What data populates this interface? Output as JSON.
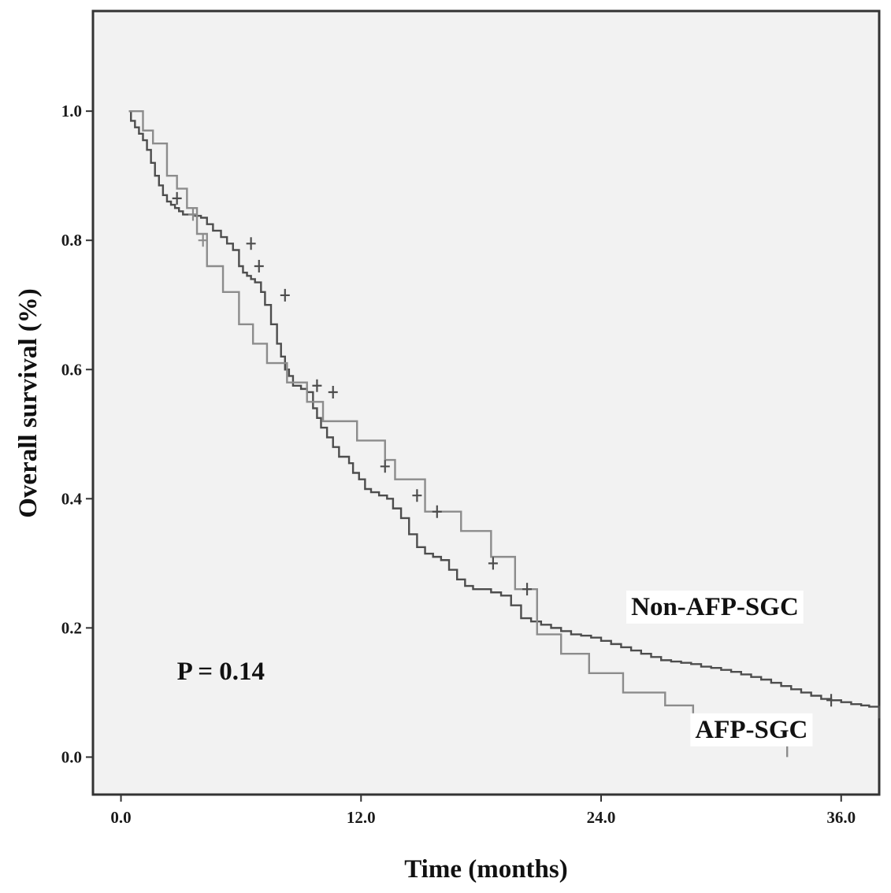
{
  "chart_data": {
    "type": "line",
    "xlabel": "Time (months)",
    "ylabel": "Overall survival (%)",
    "xlim": [
      -1.4,
      37.9
    ],
    "ylim": [
      -0.058,
      1.155
    ],
    "xticks": [
      0,
      12,
      24,
      36
    ],
    "xtick_labels": [
      "0.0",
      "12.0",
      "24.0",
      "36.0"
    ],
    "yticks": [
      0,
      0.2,
      0.4,
      0.6,
      0.8,
      1.0
    ],
    "ytick_labels": [
      "0.0",
      "0.2",
      "0.4",
      "0.6",
      "0.8",
      "1.0"
    ],
    "grid": false,
    "plot_background": "#f2f2f2",
    "annotations": [
      {
        "text": "P = 0.14",
        "x": 2.8,
        "y": 0.12
      },
      {
        "text": "Non-AFP-SGC",
        "x": 25.5,
        "y": 0.22
      },
      {
        "text": "AFP-SGC",
        "x": 28.7,
        "y": 0.03
      }
    ],
    "series": [
      {
        "name": "Non-AFP-SGC",
        "color": "#4d4d4d",
        "step": true,
        "x": [
          0.4,
          0.5,
          0.7,
          0.9,
          1.1,
          1.3,
          1.5,
          1.7,
          1.9,
          2.1,
          2.3,
          2.5,
          2.7,
          2.9,
          3.1,
          3.4,
          3.7,
          4.0,
          4.3,
          4.6,
          5.0,
          5.3,
          5.6,
          5.9,
          6.1,
          6.3,
          6.5,
          6.7,
          7.0,
          7.2,
          7.5,
          7.8,
          8.0,
          8.2,
          8.4,
          8.6,
          8.8,
          9.0,
          9.3,
          9.6,
          9.8,
          10.0,
          10.3,
          10.6,
          10.9,
          11.2,
          11.4,
          11.6,
          11.9,
          12.2,
          12.5,
          12.9,
          13.3,
          13.6,
          14.0,
          14.4,
          14.8,
          15.2,
          15.6,
          16.0,
          16.4,
          16.8,
          17.2,
          17.6,
          18.0,
          18.5,
          19.0,
          19.5,
          20.0,
          20.5,
          21.0,
          21.5,
          22.0,
          22.5,
          23.0,
          23.5,
          24.0,
          24.5,
          25.0,
          25.5,
          26.0,
          26.5,
          27.0,
          27.5,
          28.0,
          28.5,
          29.0,
          29.5,
          30.0,
          30.5,
          31.0,
          31.5,
          32.0,
          32.5,
          33.0,
          33.5,
          34.0,
          34.5,
          35.0,
          35.5,
          36.0,
          36.5,
          37.0,
          37.4,
          37.9
        ],
        "y": [
          1.0,
          0.985,
          0.975,
          0.965,
          0.955,
          0.94,
          0.92,
          0.9,
          0.885,
          0.87,
          0.86,
          0.855,
          0.85,
          0.845,
          0.84,
          0.84,
          0.838,
          0.835,
          0.825,
          0.815,
          0.805,
          0.795,
          0.785,
          0.76,
          0.75,
          0.745,
          0.74,
          0.735,
          0.72,
          0.7,
          0.67,
          0.64,
          0.62,
          0.6,
          0.59,
          0.575,
          0.575,
          0.57,
          0.565,
          0.54,
          0.525,
          0.51,
          0.495,
          0.48,
          0.465,
          0.465,
          0.455,
          0.44,
          0.43,
          0.415,
          0.41,
          0.405,
          0.4,
          0.385,
          0.37,
          0.345,
          0.325,
          0.315,
          0.31,
          0.305,
          0.29,
          0.275,
          0.265,
          0.26,
          0.26,
          0.255,
          0.25,
          0.235,
          0.215,
          0.21,
          0.205,
          0.2,
          0.195,
          0.19,
          0.188,
          0.185,
          0.18,
          0.175,
          0.17,
          0.165,
          0.16,
          0.155,
          0.15,
          0.148,
          0.146,
          0.144,
          0.14,
          0.138,
          0.135,
          0.132,
          0.128,
          0.124,
          0.12,
          0.115,
          0.11,
          0.105,
          0.1,
          0.095,
          0.09,
          0.088,
          0.085,
          0.082,
          0.08,
          0.078,
          0.06
        ]
      },
      {
        "name": "AFP-SGC",
        "color": "#8c8c8c",
        "step": true,
        "x": [
          0.4,
          1.1,
          1.6,
          2.3,
          2.8,
          3.3,
          3.8,
          4.3,
          5.1,
          5.9,
          6.6,
          7.3,
          8.3,
          9.3,
          10.1,
          11.8,
          13.2,
          13.7,
          15.2,
          17.0,
          18.5,
          19.7,
          20.8,
          22.0,
          23.4,
          25.1,
          27.2,
          28.6,
          31.4,
          32.8,
          33.3
        ],
        "y": [
          1.0,
          0.97,
          0.95,
          0.9,
          0.88,
          0.85,
          0.81,
          0.76,
          0.72,
          0.67,
          0.64,
          0.61,
          0.58,
          0.55,
          0.52,
          0.49,
          0.46,
          0.43,
          0.38,
          0.35,
          0.31,
          0.26,
          0.19,
          0.16,
          0.13,
          0.1,
          0.08,
          0.06,
          0.03,
          0.03,
          0.0
        ]
      }
    ],
    "censor_marks": {
      "Non-AFP-SGC": [
        [
          2.8,
          0.865
        ],
        [
          6.5,
          0.795
        ],
        [
          6.9,
          0.76
        ],
        [
          8.2,
          0.715
        ],
        [
          9.8,
          0.575
        ],
        [
          10.6,
          0.565
        ],
        [
          13.2,
          0.45
        ],
        [
          14.8,
          0.405
        ],
        [
          15.8,
          0.38
        ],
        [
          18.6,
          0.3
        ],
        [
          20.3,
          0.26
        ],
        [
          35.5,
          0.088
        ]
      ],
      "AFP-SGC": [
        [
          3.6,
          0.84
        ],
        [
          4.1,
          0.8
        ]
      ]
    }
  }
}
